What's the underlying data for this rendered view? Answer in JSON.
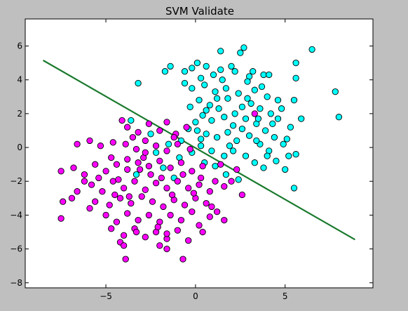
{
  "chart_data": {
    "type": "scatter",
    "title": "SVM Validate",
    "xlabel": "",
    "ylabel": "",
    "xlim": [
      -9.5,
      9.9
    ],
    "ylim": [
      -8.3,
      7.6
    ],
    "xticks": [
      -5,
      0,
      5
    ],
    "yticks": [
      -8,
      -6,
      -4,
      -2,
      0,
      2,
      4,
      6
    ],
    "xtick_labels": [
      "−5",
      "0",
      "5"
    ],
    "ytick_labels": [
      "−8",
      "−6",
      "−4",
      "−2",
      "0",
      "2",
      "4",
      "6"
    ],
    "grid": false,
    "legend": "none",
    "colors": {
      "figure_background": "#bfbfbf",
      "axes_background": "#ffffff",
      "class_positive": "#00ffff",
      "class_negative": "#ff00ff",
      "decision_line": "#1a7a2e",
      "marker_edge": "#000000"
    },
    "series": [
      {
        "color": "#00ffff",
        "points": [
          [
            2.7,
            5.9
          ],
          [
            2.5,
            5.6
          ],
          [
            1.4,
            5.7
          ],
          [
            5.6,
            5.0
          ],
          [
            6.5,
            5.8
          ],
          [
            -3.2,
            3.8
          ],
          [
            -1.7,
            4.5
          ],
          [
            -1.4,
            4.8
          ],
          [
            -0.6,
            4.5
          ],
          [
            -0.2,
            4.7
          ],
          [
            0.1,
            5.0
          ],
          [
            0.6,
            4.8
          ],
          [
            1.0,
            4.3
          ],
          [
            1.5,
            4.0
          ],
          [
            2.0,
            4.8
          ],
          [
            2.2,
            4.5
          ],
          [
            3.0,
            4.2
          ],
          [
            3.2,
            4.5
          ],
          [
            3.8,
            4.3
          ],
          [
            4.1,
            4.3
          ],
          [
            5.6,
            4.1
          ],
          [
            7.8,
            3.3
          ],
          [
            8.0,
            1.8
          ],
          [
            5.9,
            1.7
          ],
          [
            5.5,
            2.8
          ],
          [
            -0.6,
            3.8
          ],
          [
            -0.2,
            3.5
          ],
          [
            0.5,
            3.7
          ],
          [
            1.1,
            3.3
          ],
          [
            1.7,
            3.5
          ],
          [
            2.4,
            3.2
          ],
          [
            3.3,
            3.4
          ],
          [
            4.0,
            3.0
          ],
          [
            4.6,
            2.8
          ],
          [
            0.2,
            2.8
          ],
          [
            0.8,
            2.5
          ],
          [
            1.3,
            2.3
          ],
          [
            1.8,
            2.9
          ],
          [
            2.6,
            2.4
          ],
          [
            3.1,
            2.6
          ],
          [
            3.6,
            2.3
          ],
          [
            4.2,
            2.0
          ],
          [
            4.6,
            1.7
          ],
          [
            5.3,
            1.2
          ],
          [
            5.1,
            0.5
          ],
          [
            0.4,
            1.9
          ],
          [
            0.9,
            1.6
          ],
          [
            1.6,
            1.8
          ],
          [
            2.1,
            1.3
          ],
          [
            2.8,
            1.7
          ],
          [
            3.4,
            1.4
          ],
          [
            3.9,
            1.0
          ],
          [
            4.4,
            0.6
          ],
          [
            4.9,
            0.2
          ],
          [
            5.6,
            -0.4
          ],
          [
            5.2,
            -0.5
          ],
          [
            0.1,
            1.0
          ],
          [
            0.6,
            0.8
          ],
          [
            1.2,
            0.6
          ],
          [
            1.8,
            0.9
          ],
          [
            2.3,
            0.4
          ],
          [
            3.0,
            0.7
          ],
          [
            3.6,
            0.2
          ],
          [
            4.1,
            -0.2
          ],
          [
            4.5,
            -0.8
          ],
          [
            5.0,
            -1.3
          ],
          [
            0.3,
            0.1
          ],
          [
            0.9,
            -0.2
          ],
          [
            1.6,
            -0.5
          ],
          [
            2.1,
            -0.2
          ],
          [
            2.8,
            -0.5
          ],
          [
            3.3,
            -0.9
          ],
          [
            3.8,
            -1.2
          ],
          [
            5.5,
            -2.4
          ],
          [
            -0.2,
            -0.3
          ],
          [
            0.5,
            -0.9
          ],
          [
            1.1,
            -1.1
          ],
          [
            1.7,
            -1.6
          ],
          [
            2.4,
            -1.9
          ],
          [
            -0.9,
            -0.6
          ],
          [
            -1.8,
            -1.2
          ],
          [
            -1.2,
            -1.8
          ],
          [
            -3.3,
            -1.6
          ],
          [
            -3.6,
            1.6
          ],
          [
            -2.5,
            0.8
          ],
          [
            -2.2,
            -0.3
          ],
          [
            -1.5,
            0.2
          ],
          [
            -0.8,
            0.4
          ],
          [
            -0.4,
            1.1
          ],
          [
            0.0,
            1.5
          ],
          [
            0.6,
            2.2
          ],
          [
            1.2,
            2.9
          ],
          [
            2.2,
            2.0
          ],
          [
            2.9,
            2.9
          ],
          [
            3.7,
            3.6
          ],
          [
            -0.3,
            2.4
          ],
          [
            0.3,
            0.5
          ],
          [
            1.9,
            0.1
          ],
          [
            2.6,
            1.1
          ],
          [
            3.5,
            1.7
          ],
          [
            4.3,
            1.4
          ],
          [
            4.8,
            2.3
          ],
          [
            1.4,
            4.6
          ],
          [
            0.3,
            4.1
          ],
          [
            2.9,
            3.9
          ],
          [
            3.4,
            0.4
          ],
          [
            4.0,
            -0.5
          ]
        ]
      },
      {
        "color": "#ff00ff",
        "points": [
          [
            -4.1,
            1.6
          ],
          [
            -3.8,
            1.2
          ],
          [
            -3.2,
            0.9
          ],
          [
            -2.6,
            1.4
          ],
          [
            -2.0,
            1.0
          ],
          [
            -1.6,
            1.5
          ],
          [
            -1.1,
            0.8
          ],
          [
            -0.5,
            1.2
          ],
          [
            -6.6,
            0.2
          ],
          [
            -5.9,
            0.4
          ],
          [
            -5.3,
            0.1
          ],
          [
            -4.6,
            0.3
          ],
          [
            -3.9,
            0.2
          ],
          [
            -3.3,
            -0.1
          ],
          [
            -2.8,
            0.4
          ],
          [
            -2.2,
            0.1
          ],
          [
            -1.6,
            -0.2
          ],
          [
            -1.0,
            0.2
          ],
          [
            -0.3,
            -0.1
          ],
          [
            -7.5,
            -1.4
          ],
          [
            -6.8,
            -1.2
          ],
          [
            -6.2,
            -1.6
          ],
          [
            -5.6,
            -1.0
          ],
          [
            -5.0,
            -1.4
          ],
          [
            -4.4,
            -1.0
          ],
          [
            -3.8,
            -1.3
          ],
          [
            -3.2,
            -0.9
          ],
          [
            -2.6,
            -1.1
          ],
          [
            -2.0,
            -0.8
          ],
          [
            -1.4,
            -1.2
          ],
          [
            -0.8,
            -0.9
          ],
          [
            -0.2,
            -1.4
          ],
          [
            0.4,
            -1.1
          ],
          [
            -7.4,
            -3.2
          ],
          [
            -6.6,
            -2.6
          ],
          [
            -5.8,
            -2.2
          ],
          [
            -5.2,
            -2.6
          ],
          [
            -4.6,
            -2.0
          ],
          [
            -4.0,
            -2.4
          ],
          [
            -3.4,
            -2.0
          ],
          [
            -2.8,
            -2.5
          ],
          [
            -2.2,
            -2.1
          ],
          [
            -1.6,
            -2.4
          ],
          [
            -1.0,
            -2.0
          ],
          [
            -0.4,
            -2.4
          ],
          [
            0.2,
            -2.2
          ],
          [
            0.8,
            -2.6
          ],
          [
            1.6,
            -2.3
          ],
          [
            -6.9,
            -3.0
          ],
          [
            -5.6,
            -3.2
          ],
          [
            -4.8,
            -3.4
          ],
          [
            -4.2,
            -3.0
          ],
          [
            -3.6,
            -3.3
          ],
          [
            -3.0,
            -2.9
          ],
          [
            -2.4,
            -3.2
          ],
          [
            -1.8,
            -3.5
          ],
          [
            -1.2,
            -3.1
          ],
          [
            -0.6,
            -3.4
          ],
          [
            0.0,
            -3.0
          ],
          [
            0.6,
            -3.3
          ],
          [
            1.2,
            -3.8
          ],
          [
            2.6,
            -2.8
          ],
          [
            -7.5,
            -4.2
          ],
          [
            -5.0,
            -4.0
          ],
          [
            -4.4,
            -4.4
          ],
          [
            -3.8,
            -3.9
          ],
          [
            -3.2,
            -4.3
          ],
          [
            -2.6,
            -4.0
          ],
          [
            -2.0,
            -4.4
          ],
          [
            -1.4,
            -4.0
          ],
          [
            -0.8,
            -4.3
          ],
          [
            -0.2,
            -3.8
          ],
          [
            0.8,
            -4.1
          ],
          [
            -4.7,
            -4.8
          ],
          [
            -4.0,
            -5.2
          ],
          [
            -3.4,
            -4.8
          ],
          [
            -2.8,
            -5.3
          ],
          [
            -2.2,
            -5.0
          ],
          [
            -1.6,
            -5.4
          ],
          [
            -1.0,
            -4.9
          ],
          [
            -0.4,
            -5.5
          ],
          [
            -4.2,
            -5.6
          ],
          [
            -4.0,
            -5.8
          ],
          [
            -2.0,
            -5.8
          ],
          [
            -1.6,
            -6.0
          ],
          [
            -0.7,
            -6.6
          ],
          [
            -3.9,
            -6.6
          ],
          [
            -1.6,
            -5.1
          ],
          [
            0.2,
            -4.6
          ],
          [
            1.6,
            -4.3
          ],
          [
            0.4,
            -5.0
          ],
          [
            -3.5,
            0.6
          ],
          [
            -2.9,
            -0.6
          ],
          [
            -4.7,
            -0.6
          ],
          [
            -5.4,
            -1.8
          ],
          [
            -6.2,
            -2.0
          ],
          [
            -2.5,
            -1.6
          ],
          [
            -1.9,
            -1.8
          ],
          [
            -0.7,
            -1.6
          ],
          [
            1.1,
            -2.0
          ],
          [
            2.3,
            -1.3
          ],
          [
            -3.7,
            -2.9
          ],
          [
            -3.1,
            -1.3
          ],
          [
            -4.3,
            -1.9
          ],
          [
            -1.3,
            -2.8
          ],
          [
            -0.1,
            -2.7
          ],
          [
            0.9,
            -3.5
          ],
          [
            -2.1,
            -4.7
          ],
          [
            -3.3,
            -5.0
          ],
          [
            1.4,
            -1.0
          ],
          [
            -4.5,
            -2.8
          ],
          [
            -5.9,
            -3.6
          ],
          [
            -2.8,
            -0.3
          ],
          [
            -1.2,
            0.6
          ],
          [
            -3.8,
            -0.7
          ],
          [
            3.3,
            2.0
          ],
          [
            0.3,
            -1.8
          ],
          [
            2.0,
            -2.0
          ]
        ]
      }
    ],
    "decision_boundary": {
      "type": "line",
      "x": [
        -8.5,
        8.9
      ],
      "y": [
        5.15,
        -5.45
      ]
    }
  }
}
